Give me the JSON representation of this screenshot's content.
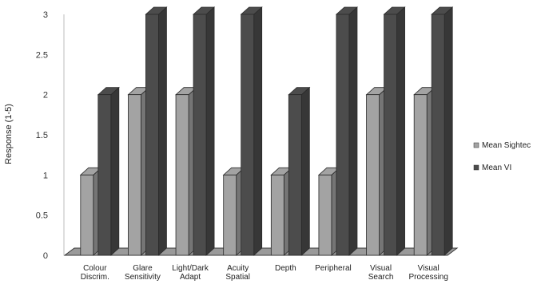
{
  "chart_data": {
    "type": "bar",
    "ylabel": "Response (1-5)",
    "ylim": [
      0,
      3
    ],
    "yticks": [
      "0",
      "0.5",
      "1",
      "1.5",
      "2",
      "2.5",
      "3"
    ],
    "grid": false,
    "legend_position": "right",
    "categories": [
      [
        "Colour",
        "Discrim."
      ],
      [
        "Glare",
        "Sensitivity"
      ],
      [
        "Light/Dark",
        "Adapt"
      ],
      [
        "Acuity",
        "Spatial"
      ],
      [
        "Depth"
      ],
      [
        "Peripheral"
      ],
      [
        "Visual",
        "Search"
      ],
      [
        "Visual",
        "Processing"
      ]
    ],
    "series": [
      {
        "name": "Mean Sightec",
        "color": "#a3a3a3",
        "values": [
          1,
          2,
          2,
          1,
          1,
          1,
          2,
          2
        ]
      },
      {
        "name": "Mean VI",
        "color": "#4c4c4c",
        "values": [
          2,
          3,
          3,
          3,
          2,
          3,
          3,
          3
        ]
      }
    ]
  }
}
